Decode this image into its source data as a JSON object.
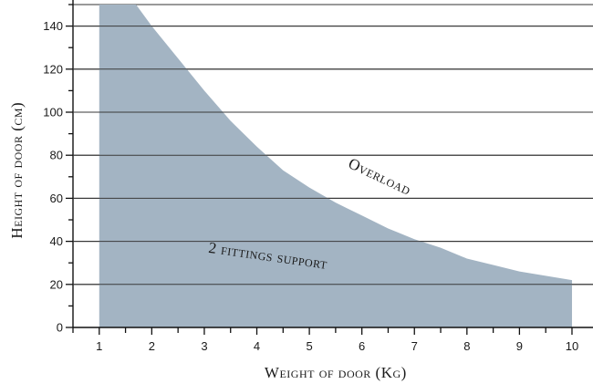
{
  "chart_data": {
    "type": "area",
    "title": "",
    "xlabel": "Weight of door (Kg)",
    "ylabel": "Height of door (cm)",
    "x_ticks": [
      1,
      2,
      3,
      4,
      5,
      6,
      7,
      8,
      9,
      10
    ],
    "y_ticks": [
      0,
      20,
      40,
      60,
      80,
      100,
      120,
      140
    ],
    "xlim": [
      0.5,
      10.4
    ],
    "ylim": [
      0,
      150
    ],
    "grid": "horizontal",
    "fill_color": "#a3b4c3",
    "series": [
      {
        "x": [
          1,
          1.7,
          2,
          2.5,
          3,
          3.5,
          4,
          4.5,
          5,
          5.5,
          6,
          6.5,
          7,
          7.5,
          8,
          8.5,
          9,
          9.5,
          10
        ],
        "y": [
          150,
          150,
          140,
          125,
          110,
          96,
          84,
          73,
          65,
          58,
          52,
          46,
          41,
          37,
          32,
          29,
          26,
          24,
          22
        ]
      }
    ],
    "annotations": [
      {
        "text": "Overload",
        "x": 6.3,
        "y": 68,
        "rotate": 25
      },
      {
        "text": "2 fittings support",
        "x": 4.2,
        "y": 31,
        "rotate": 8
      }
    ]
  }
}
